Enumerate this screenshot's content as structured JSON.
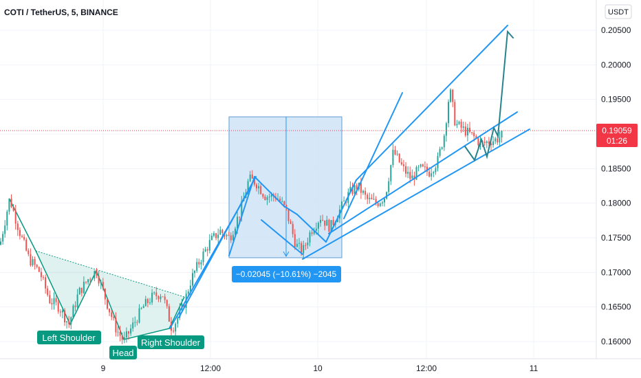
{
  "header": {
    "symbol_title": "COTI / TetherUS, 5, BINANCE"
  },
  "currency_button": "USDT",
  "price_tag": {
    "price": "0.19059",
    "countdown": "01:26"
  },
  "measure": {
    "label": "−0.02045 (−10.61%) −2045"
  },
  "pattern_labels": {
    "left_shoulder": "Left Shoulder",
    "head": "Head",
    "right_shoulder": "Right Shoulder"
  },
  "colors": {
    "bull": "#26a69a",
    "bear": "#ef5350",
    "drawing": "#2196f3",
    "pattern": "#089981",
    "measure_fill": "#cfe3f7",
    "price_line": "#f23645"
  },
  "chart_data": {
    "type": "candlestick",
    "title": "COTI / TetherUS, 5, BINANCE",
    "x_tick_labels": [
      "9",
      "12:00",
      "10",
      "12:00",
      "11"
    ],
    "y_tick_labels": [
      "0.20500",
      "0.20000",
      "0.19500",
      "0.19000",
      "0.18500",
      "0.18000",
      "0.17500",
      "0.17000",
      "0.16500",
      "0.16000"
    ],
    "ylim": [
      0.159,
      0.2075
    ],
    "last_price": 0.19059,
    "grid": true,
    "price_path": [
      [
        0,
        0.174
      ],
      [
        14,
        0.1807
      ],
      [
        28,
        0.176
      ],
      [
        42,
        0.172
      ],
      [
        58,
        0.17
      ],
      [
        72,
        0.166
      ],
      [
        86,
        0.165
      ],
      [
        100,
        0.1625
      ],
      [
        114,
        0.167
      ],
      [
        128,
        0.169
      ],
      [
        140,
        0.1703
      ],
      [
        154,
        0.166
      ],
      [
        168,
        0.162
      ],
      [
        180,
        0.16
      ],
      [
        194,
        0.1625
      ],
      [
        208,
        0.165
      ],
      [
        222,
        0.1665
      ],
      [
        236,
        0.167
      ],
      [
        250,
        0.1618
      ],
      [
        266,
        0.165
      ],
      [
        278,
        0.169
      ],
      [
        292,
        0.172
      ],
      [
        306,
        0.1745
      ],
      [
        320,
        0.176
      ],
      [
        334,
        0.175
      ],
      [
        350,
        0.179
      ],
      [
        362,
        0.1835
      ],
      [
        372,
        0.183
      ],
      [
        386,
        0.181
      ],
      [
        402,
        0.181
      ],
      [
        416,
        0.179
      ],
      [
        430,
        0.174
      ],
      [
        440,
        0.173
      ],
      [
        452,
        0.176
      ],
      [
        466,
        0.178
      ],
      [
        480,
        0.1765
      ],
      [
        494,
        0.179
      ],
      [
        508,
        0.1815
      ],
      [
        520,
        0.1825
      ],
      [
        534,
        0.1805
      ],
      [
        548,
        0.18
      ],
      [
        560,
        0.181
      ],
      [
        572,
        0.1875
      ],
      [
        586,
        0.185
      ],
      [
        598,
        0.1835
      ],
      [
        610,
        0.185
      ],
      [
        624,
        0.1845
      ],
      [
        636,
        0.186
      ],
      [
        646,
        0.19
      ],
      [
        654,
        0.1965
      ],
      [
        662,
        0.1915
      ],
      [
        676,
        0.1905
      ],
      [
        690,
        0.1895
      ],
      [
        700,
        0.1885
      ],
      [
        712,
        0.189
      ],
      [
        722,
        0.1892
      ],
      [
        732,
        0.19
      ]
    ]
  }
}
